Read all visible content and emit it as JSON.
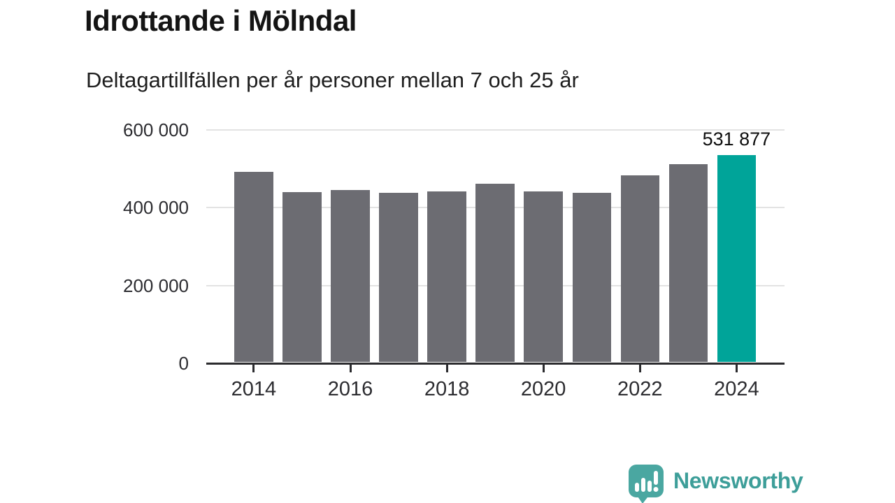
{
  "header": {
    "title": "Idrottande i Mölndal",
    "subtitle": "Deltagartillfällen per år personer mellan 7 och 25 år"
  },
  "chart_data": {
    "type": "bar",
    "title": "Idrottande i Mölndal",
    "subtitle": "Deltagartillfällen per år personer mellan 7 och 25 år",
    "categories": [
      "2014",
      "2015",
      "2016",
      "2017",
      "2018",
      "2019",
      "2020",
      "2021",
      "2022",
      "2023",
      "2024"
    ],
    "values": [
      490000,
      437000,
      442000,
      435000,
      439000,
      459000,
      439000,
      436000,
      480000,
      509000,
      531877
    ],
    "highlight_index": 10,
    "highlight_label": "531 877",
    "x_tick_labels": [
      "2014",
      "2016",
      "2018",
      "2020",
      "2022",
      "2024"
    ],
    "y_ticks": [
      {
        "value": 600000,
        "label": "600 000"
      },
      {
        "value": 400000,
        "label": "400 000"
      },
      {
        "value": 200000,
        "label": "200 000"
      },
      {
        "value": 0,
        "label": "0"
      }
    ],
    "ylim": [
      0,
      600000
    ],
    "xlabel": "",
    "ylabel": "",
    "grid": "horizontal",
    "legend": "none",
    "colors": {
      "bar": "#6c6c72",
      "highlight": "#00a499",
      "gridline": "#e3e3e3",
      "axis": "#2b2b2e",
      "tick_label": "#2c2c30"
    }
  },
  "footer": {
    "brand_name": "Newsworthy",
    "logo_icon": "newsworthy-logo-icon",
    "icon_color": "#4aa7a1",
    "text_color": "#3d9e99"
  }
}
